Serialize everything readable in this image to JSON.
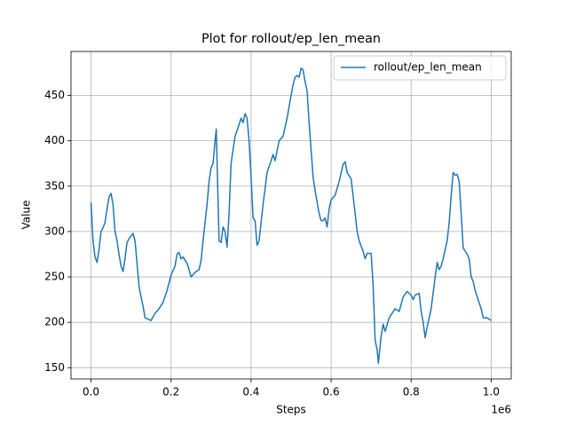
{
  "chart_data": {
    "type": "line",
    "title": "Plot for rollout/ep_len_mean",
    "xlabel": "Steps",
    "ylabel": "Value",
    "x_offset_label": "1e6",
    "x": [
      0,
      0.005,
      0.01,
      0.015,
      0.02,
      0.025,
      0.03,
      0.035,
      0.04,
      0.045,
      0.05,
      0.055,
      0.06,
      0.065,
      0.07,
      0.075,
      0.08,
      0.085,
      0.09,
      0.095,
      0.1,
      0.105,
      0.11,
      0.115,
      0.12,
      0.125,
      0.13,
      0.135,
      0.14,
      0.15,
      0.16,
      0.17,
      0.18,
      0.19,
      0.2,
      0.21,
      0.215,
      0.22,
      0.225,
      0.23,
      0.24,
      0.245,
      0.25,
      0.26,
      0.27,
      0.275,
      0.28,
      0.29,
      0.295,
      0.3,
      0.305,
      0.31,
      0.313,
      0.316,
      0.32,
      0.325,
      0.33,
      0.335,
      0.34,
      0.345,
      0.35,
      0.36,
      0.37,
      0.375,
      0.38,
      0.385,
      0.39,
      0.395,
      0.4,
      0.405,
      0.41,
      0.415,
      0.42,
      0.425,
      0.43,
      0.44,
      0.45,
      0.455,
      0.46,
      0.47,
      0.48,
      0.49,
      0.5,
      0.505,
      0.51,
      0.515,
      0.52,
      0.525,
      0.53,
      0.535,
      0.54,
      0.545,
      0.55,
      0.555,
      0.56,
      0.57,
      0.575,
      0.58,
      0.585,
      0.59,
      0.595,
      0.6,
      0.61,
      0.62,
      0.63,
      0.635,
      0.64,
      0.65,
      0.66,
      0.665,
      0.67,
      0.68,
      0.685,
      0.69,
      0.7,
      0.705,
      0.71,
      0.715,
      0.718,
      0.725,
      0.73,
      0.735,
      0.745,
      0.76,
      0.77,
      0.78,
      0.79,
      0.8,
      0.805,
      0.81,
      0.82,
      0.825,
      0.83,
      0.835,
      0.84,
      0.85,
      0.86,
      0.865,
      0.87,
      0.875,
      0.88,
      0.89,
      0.895,
      0.9,
      0.905,
      0.91,
      0.915,
      0.92,
      0.925,
      0.93,
      0.94,
      0.945,
      0.95,
      0.955,
      0.96,
      0.965,
      0.975,
      0.98,
      0.99,
      1
    ],
    "series": [
      {
        "name": "rollout/ep_len_mean",
        "color": "#1f77b4",
        "values": [
          332,
          290,
          272,
          266,
          280,
          300,
          304,
          310,
          325,
          338,
          342,
          330,
          300,
          290,
          275,
          262,
          256,
          270,
          288,
          292,
          295,
          298,
          290,
          265,
          240,
          228,
          218,
          205,
          204,
          202,
          210,
          215,
          222,
          235,
          252,
          262,
          275,
          277,
          270,
          272,
          265,
          258,
          250,
          255,
          258,
          268,
          290,
          330,
          355,
          370,
          375,
          400,
          413,
          360,
          290,
          288,
          305,
          300,
          283,
          320,
          375,
          405,
          418,
          425,
          420,
          430,
          425,
          400,
          360,
          315,
          312,
          285,
          290,
          310,
          330,
          365,
          378,
          385,
          378,
          400,
          405,
          425,
          450,
          462,
          470,
          472,
          470,
          480,
          478,
          465,
          455,
          420,
          390,
          360,
          345,
          320,
          312,
          312,
          315,
          305,
          325,
          335,
          340,
          355,
          374,
          377,
          365,
          358,
          320,
          300,
          290,
          278,
          270,
          276,
          276,
          240,
          180,
          170,
          155,
          185,
          198,
          190,
          205,
          215,
          212,
          228,
          234,
          230,
          225,
          230,
          232,
          212,
          200,
          183,
          195,
          215,
          250,
          266,
          258,
          262,
          270,
          290,
          310,
          340,
          365,
          362,
          363,
          355,
          320,
          282,
          275,
          270,
          250,
          245,
          235,
          228,
          215,
          205,
          205,
          202
        ]
      }
    ],
    "xlim": [
      -0.05,
      1.05
    ],
    "xticks": [
      {
        "value": 0,
        "label": "0.0"
      },
      0.2,
      0.4,
      0.6,
      0.8,
      {
        "value": 1,
        "label": "1.0"
      }
    ],
    "ylim": [
      137.6,
      498.4
    ],
    "yticks": [
      150,
      200,
      250,
      300,
      350,
      400,
      450
    ],
    "grid": true,
    "legend": "upper right"
  }
}
